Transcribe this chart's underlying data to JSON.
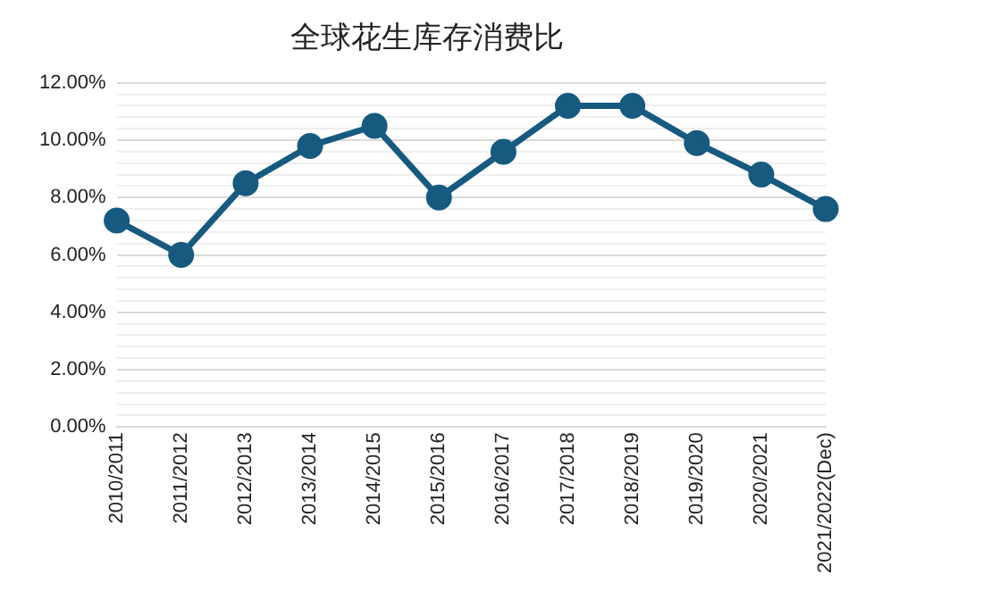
{
  "chart_data": {
    "type": "line",
    "title": "全球花生库存消费比",
    "categories": [
      "2010/2011",
      "2011/2012",
      "2012/2013",
      "2013/2014",
      "2014/2015",
      "2015/2016",
      "2016/2017",
      "2017/2018",
      "2018/2019",
      "2019/2020",
      "2020/2021",
      "2021/2022(Dec)"
    ],
    "series": [
      {
        "color": "#165a80",
        "values": [
          7.2,
          6.0,
          8.5,
          9.8,
          10.5,
          8.0,
          9.6,
          11.2,
          11.2,
          9.9,
          8.8,
          7.6
        ]
      }
    ],
    "ylim": [
      0,
      12
    ],
    "yticks": [
      {
        "value": 0,
        "label": "0.00%"
      },
      {
        "value": 0.4,
        "label": null
      },
      {
        "value": 0.8,
        "label": null
      },
      {
        "value": 1.2,
        "label": null
      },
      {
        "value": 1.6,
        "label": null
      },
      {
        "value": 2,
        "label": "2.00%"
      },
      {
        "value": 2.4,
        "label": null
      },
      {
        "value": 2.8,
        "label": null
      },
      {
        "value": 3.2,
        "label": null
      },
      {
        "value": 3.6,
        "label": null
      },
      {
        "value": 4,
        "label": "4.00%"
      },
      {
        "value": 4.4,
        "label": null
      },
      {
        "value": 4.8,
        "label": null
      },
      {
        "value": 5.2,
        "label": null
      },
      {
        "value": 5.6,
        "label": null
      },
      {
        "value": 6,
        "label": "6.00%"
      },
      {
        "value": 6.4,
        "label": null
      },
      {
        "value": 6.8,
        "label": null
      },
      {
        "value": 7.2,
        "label": null
      },
      {
        "value": 7.6,
        "label": null
      },
      {
        "value": 8,
        "label": "8.00%"
      },
      {
        "value": 8.4,
        "label": null
      },
      {
        "value": 8.8,
        "label": null
      },
      {
        "value": 9.2,
        "label": null
      },
      {
        "value": 9.6,
        "label": null
      },
      {
        "value": 10,
        "label": "10.00%"
      },
      {
        "value": 10.4,
        "label": null
      },
      {
        "value": 10.8,
        "label": null
      },
      {
        "value": 11.2,
        "label": null
      },
      {
        "value": 11.6,
        "label": null
      },
      {
        "value": 12,
        "label": "12.00%"
      }
    ],
    "grid": "y",
    "legend": false,
    "marker": "circle",
    "line_style": "solid"
  }
}
